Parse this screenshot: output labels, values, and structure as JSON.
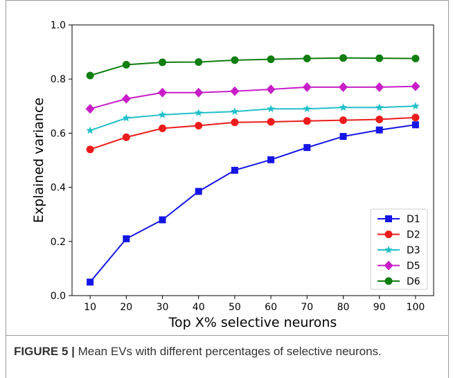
{
  "chart_data": {
    "type": "line",
    "xlabel": "Top X% selective neurons",
    "ylabel": "Explained variance",
    "x": [
      10,
      20,
      30,
      40,
      50,
      60,
      70,
      80,
      90,
      100
    ],
    "xlim": [
      5,
      105
    ],
    "ylim": [
      0.0,
      1.0
    ],
    "xticks": [
      10,
      20,
      30,
      40,
      50,
      60,
      70,
      80,
      90,
      100
    ],
    "yticks": [
      "0.0",
      "0.2",
      "0.4",
      "0.6",
      "0.8",
      "1.0"
    ],
    "grid": false,
    "legend_position": "bottom-right",
    "series": [
      {
        "name": "D1",
        "color": "#1515e6",
        "marker": "square",
        "values": [
          0.05,
          0.21,
          0.28,
          0.385,
          0.463,
          0.502,
          0.547,
          0.588,
          0.612,
          0.631
        ]
      },
      {
        "name": "D2",
        "color": "#ec1c1c",
        "marker": "circle",
        "values": [
          0.54,
          0.585,
          0.618,
          0.628,
          0.64,
          0.642,
          0.645,
          0.648,
          0.651,
          0.658
        ]
      },
      {
        "name": "D3",
        "color": "#20c0c8",
        "marker": "star",
        "values": [
          0.61,
          0.656,
          0.668,
          0.675,
          0.68,
          0.69,
          0.69,
          0.695,
          0.695,
          0.7
        ]
      },
      {
        "name": "D5",
        "color": "#c81ec8",
        "marker": "diamond",
        "values": [
          0.69,
          0.727,
          0.75,
          0.75,
          0.755,
          0.762,
          0.77,
          0.77,
          0.77,
          0.773
        ]
      },
      {
        "name": "D6",
        "color": "#0f7d0f",
        "marker": "circle",
        "values": [
          0.813,
          0.853,
          0.862,
          0.863,
          0.87,
          0.873,
          0.876,
          0.878,
          0.877,
          0.876
        ]
      }
    ]
  },
  "caption": {
    "label": "FIGURE 5 |",
    "text": " Mean EVs with different percentages of selective neurons."
  }
}
